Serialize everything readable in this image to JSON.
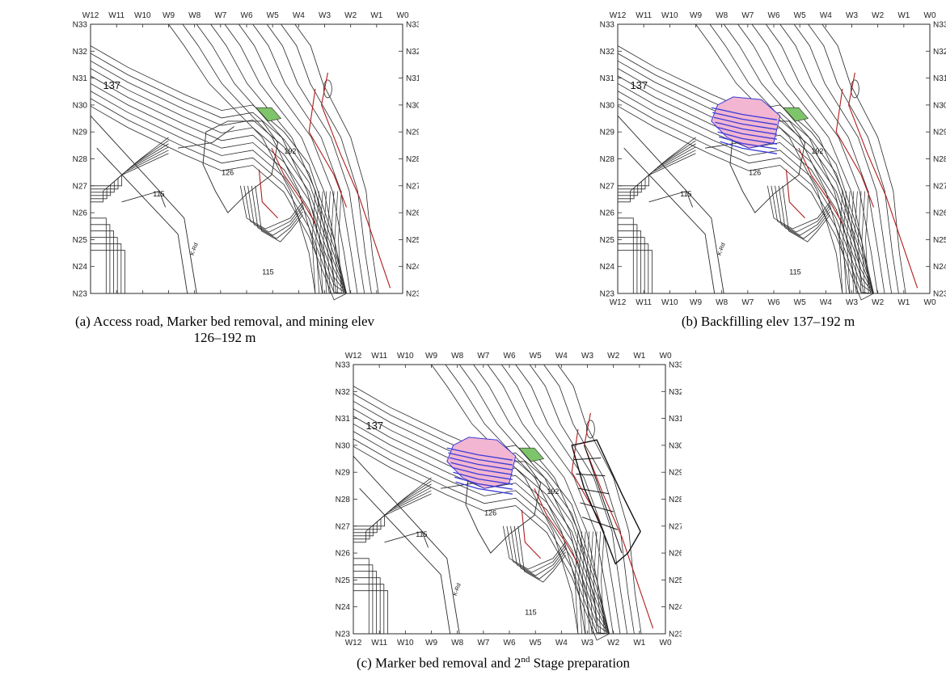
{
  "columns": [
    "W12",
    "W11",
    "W10",
    "W9",
    "W8",
    "W7",
    "W6",
    "W5",
    "W4",
    "W3",
    "W2",
    "W1",
    "W0"
  ],
  "rows": [
    "N33",
    "N32",
    "N31",
    "N30",
    "N29",
    "N28",
    "N27",
    "N26",
    "N25",
    "N24",
    "N23"
  ],
  "elevations": {
    "e137": "137",
    "e126": "126",
    "e115a": "115",
    "e115b": "115",
    "e192": "192"
  },
  "road_label": "K-Rd",
  "panels": [
    {
      "id": "a",
      "caption_line1": "(a) Access road, Marker bed removal, and mining elev",
      "caption_line2": "126–192 m",
      "backfill": false,
      "stage2": false
    },
    {
      "id": "b",
      "caption_line1": "(b) Backfilling elev 137–192 m",
      "backfill": true,
      "stage2": false
    },
    {
      "id": "c",
      "caption_prefix": "(c) Marker bed removal and 2",
      "caption_sup": "nd",
      "caption_suffix": " Stage preparation",
      "backfill": true,
      "stage2": true
    }
  ],
  "colors": {
    "contour": "#2a2a2a",
    "fault": "#b01c1c",
    "marker_bed": "#7ec46a",
    "backfill_fill": "#f2b6d2",
    "backfill_lines": "#3b3bd6",
    "stage2": "#111111"
  }
}
